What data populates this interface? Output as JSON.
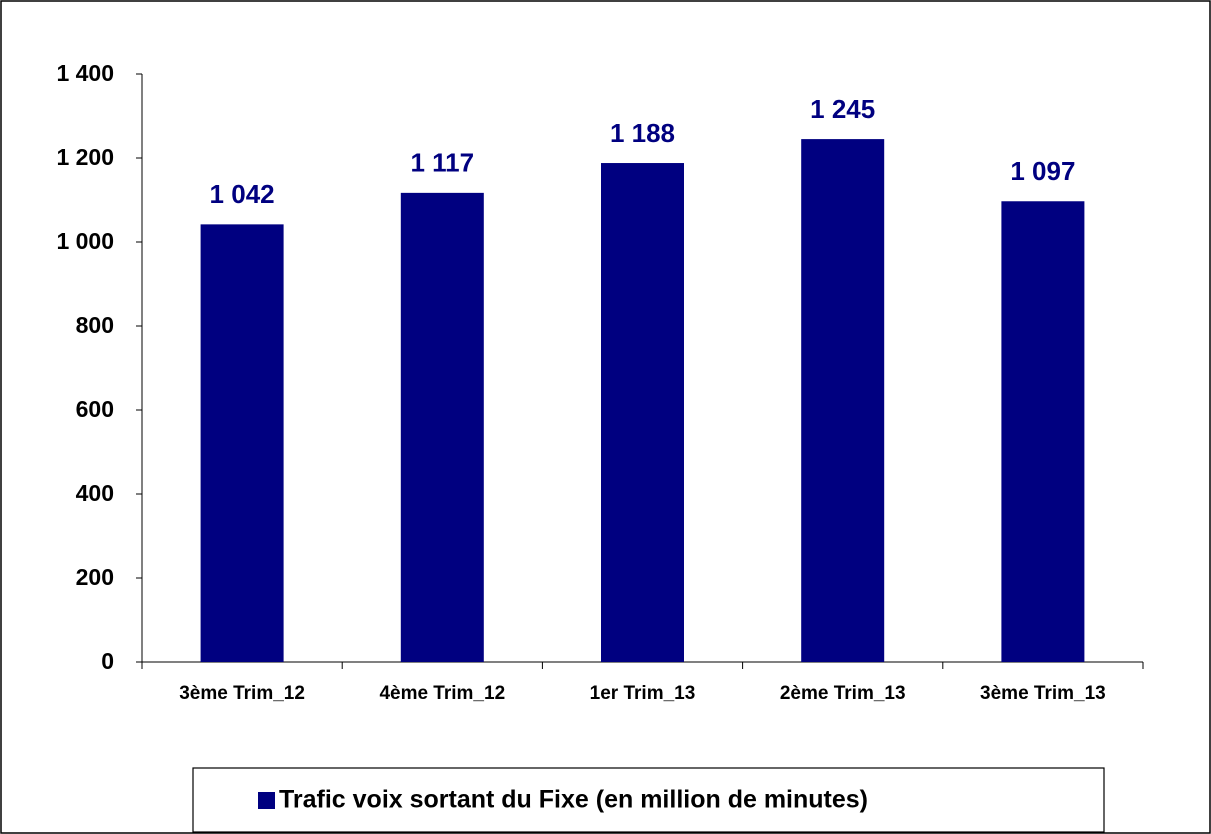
{
  "chart_data": {
    "type": "bar",
    "categories": [
      "3ème Trim_12",
      "4ème Trim_12",
      "1er Trim_13",
      "2ème Trim_13",
      "3ème Trim_13"
    ],
    "series": [
      {
        "name": "Trafic voix sortant du Fixe (en million de minutes)",
        "color": "#000080",
        "values": [
          1042,
          1117,
          1188,
          1245,
          1097
        ],
        "value_labels": [
          "1 042",
          "1 117",
          "1 188",
          "1 245",
          "1 097"
        ]
      }
    ],
    "ylim": [
      0,
      1400
    ],
    "yticks": [
      0,
      200,
      400,
      600,
      800,
      {
        "value": 1000,
        "label": "1 000"
      },
      {
        "value": 1200,
        "label": "1 200"
      },
      {
        "value": 1400,
        "label": "1 400"
      }
    ],
    "grid": false,
    "legend": "bottom"
  }
}
